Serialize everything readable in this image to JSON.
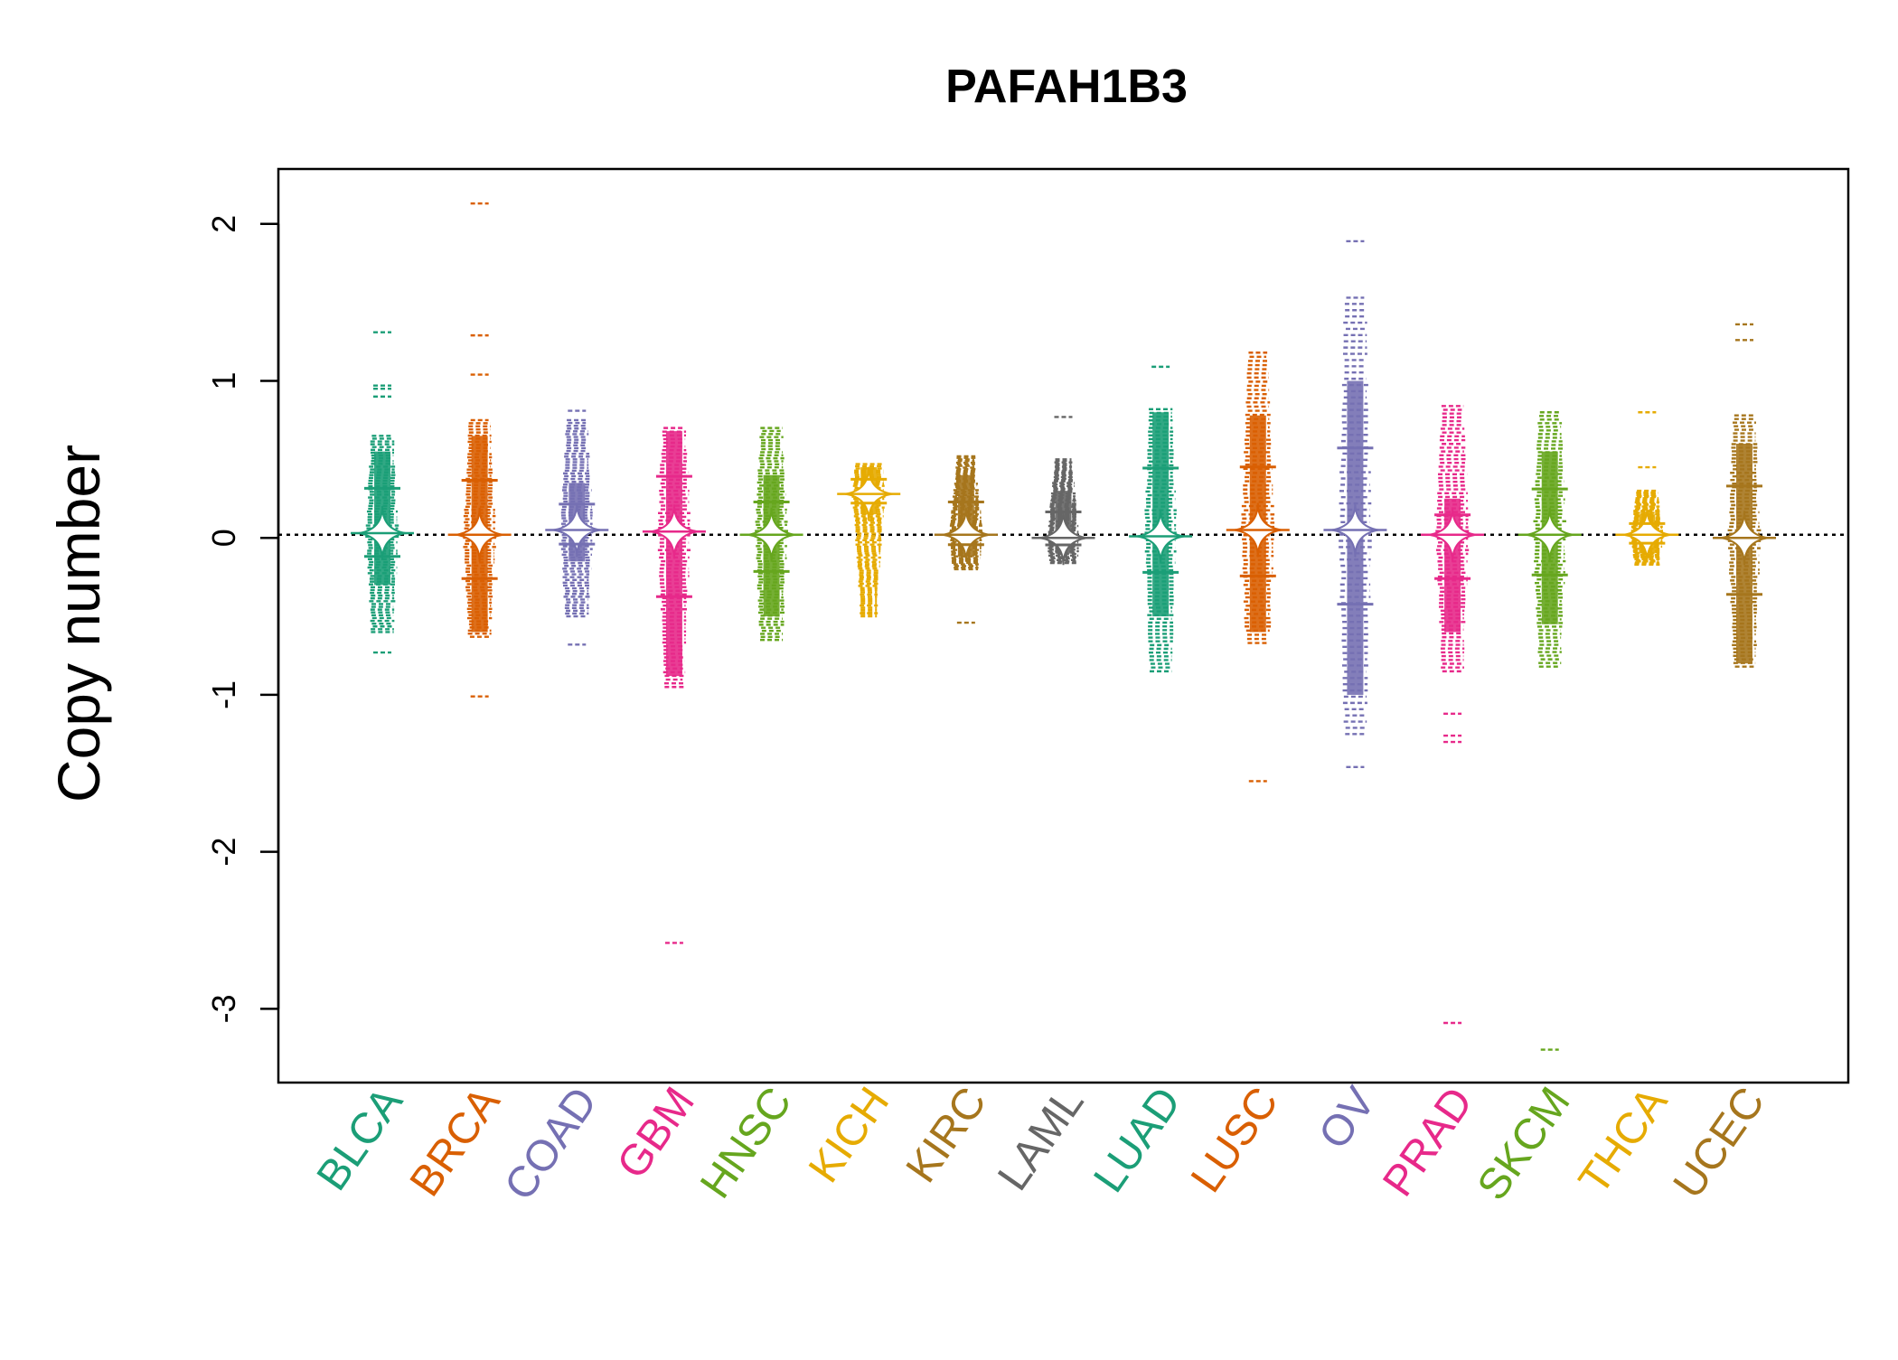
{
  "chart_data": {
    "type": "beanplot",
    "title": "PAFAH1B3",
    "xlabel": "",
    "ylabel": "Copy number",
    "ylim": [
      -3.47,
      2.35
    ],
    "yticks": [
      -3,
      -2,
      -1,
      0,
      1,
      2
    ],
    "reference_line": 0.02,
    "categories": [
      "BLCA",
      "BRCA",
      "COAD",
      "GBM",
      "HNSC",
      "KICH",
      "KIRC",
      "LAML",
      "LUAD",
      "LUSC",
      "OV",
      "PRAD",
      "SKCM",
      "THCA",
      "UCEC"
    ],
    "colors": [
      "#1b9e77",
      "#d95f02",
      "#7570b3",
      "#e7298a",
      "#66a61e",
      "#e6ab02",
      "#a6761d",
      "#666666",
      "#1b9e77",
      "#d95f02",
      "#7570b3",
      "#e7298a",
      "#66a61e",
      "#e6ab02",
      "#a6761d"
    ],
    "series": [
      {
        "category": "BLCA",
        "median": 0.03,
        "core": [
          -0.3,
          0.55
        ],
        "tail": [
          -0.6,
          0.65
        ],
        "outliers": [
          1.31,
          0.97,
          0.95,
          0.9,
          -0.73
        ]
      },
      {
        "category": "BRCA",
        "median": 0.02,
        "core": [
          -0.6,
          0.65
        ],
        "tail": [
          -0.63,
          0.75
        ],
        "outliers": [
          2.13,
          1.29,
          1.04,
          -1.01
        ]
      },
      {
        "category": "COAD",
        "median": 0.05,
        "core": [
          -0.15,
          0.35
        ],
        "tail": [
          -0.5,
          0.75
        ],
        "outliers": [
          0.81,
          -0.68
        ]
      },
      {
        "category": "GBM",
        "median": 0.04,
        "core": [
          -0.88,
          0.68
        ],
        "tail": [
          -0.95,
          0.7
        ],
        "outliers": [
          -2.58
        ]
      },
      {
        "category": "HNSC",
        "median": 0.02,
        "core": [
          -0.5,
          0.4
        ],
        "tail": [
          -0.65,
          0.7
        ],
        "outliers": []
      },
      {
        "category": "KICH",
        "median": 0.28,
        "core": [
          0.15,
          0.45
        ],
        "tail": [
          -0.5,
          0.47
        ],
        "outliers": [
          -0.48
        ]
      },
      {
        "category": "KIRC",
        "median": 0.02,
        "core": [
          -0.12,
          0.4
        ],
        "tail": [
          -0.2,
          0.52
        ],
        "outliers": [
          -0.54
        ]
      },
      {
        "category": "LAML",
        "median": 0.0,
        "core": [
          -0.1,
          0.3
        ],
        "tail": [
          -0.16,
          0.5
        ],
        "outliers": [
          0.77
        ]
      },
      {
        "category": "LUAD",
        "median": 0.01,
        "core": [
          -0.5,
          0.8
        ],
        "tail": [
          -0.85,
          0.82
        ],
        "outliers": [
          1.09
        ]
      },
      {
        "category": "LUSC",
        "median": 0.05,
        "core": [
          -0.6,
          0.78
        ],
        "tail": [
          -0.67,
          1.18
        ],
        "outliers": [
          -1.55
        ]
      },
      {
        "category": "OV",
        "median": 0.05,
        "core": [
          -1.0,
          1.0
        ],
        "tail": [
          -1.25,
          1.53
        ],
        "outliers": [
          1.89,
          -1.46
        ]
      },
      {
        "category": "PRAD",
        "median": 0.02,
        "core": [
          -0.6,
          0.25
        ],
        "tail": [
          -0.85,
          0.84
        ],
        "outliers": [
          -1.12,
          -1.26,
          -1.3,
          -3.09
        ]
      },
      {
        "category": "SKCM",
        "median": 0.02,
        "core": [
          -0.55,
          0.55
        ],
        "tail": [
          -0.82,
          0.8
        ],
        "outliers": [
          -3.26
        ]
      },
      {
        "category": "THCA",
        "median": 0.02,
        "core": [
          -0.1,
          0.15
        ],
        "tail": [
          -0.17,
          0.3
        ],
        "outliers": [
          0.8,
          0.45
        ]
      },
      {
        "category": "UCEC",
        "median": 0.0,
        "core": [
          -0.8,
          0.6
        ],
        "tail": [
          -0.82,
          0.78
        ],
        "outliers": [
          1.36,
          1.26
        ]
      }
    ]
  }
}
